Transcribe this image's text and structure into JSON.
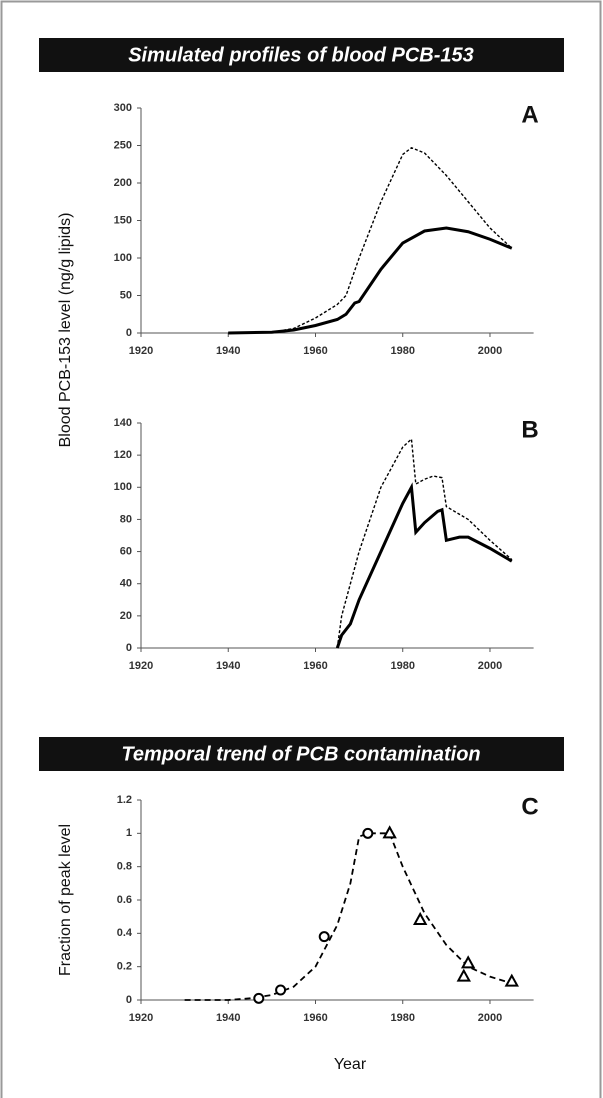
{
  "banners": [
    "Simulated profiles of blood PCB-153",
    "Temporal trend of PCB contamination"
  ],
  "shared_ylabel": "Blood PCB-153 level (ng/g lipids)",
  "chart_data": [
    {
      "type": "line",
      "panel": "A",
      "xlim": [
        1920,
        2010
      ],
      "xticks": [
        1920,
        1940,
        1960,
        1980,
        2000
      ],
      "ylim": [
        0,
        300
      ],
      "yticks": [
        0,
        50,
        100,
        150,
        200,
        250,
        300
      ],
      "series": [
        {
          "color": "#000000",
          "dash": false,
          "x": [
            1940,
            1950,
            1955,
            1960,
            1965,
            1967,
            1969,
            1970,
            1975,
            1980,
            1985,
            1990,
            1995,
            2000,
            2005
          ],
          "values": [
            0,
            1,
            4,
            10,
            18,
            25,
            40,
            42,
            85,
            120,
            136,
            140,
            135,
            125,
            113
          ]
        },
        {
          "color": "#000000",
          "dash": true,
          "x": [
            1940,
            1950,
            1955,
            1960,
            1965,
            1967,
            1970,
            1975,
            1980,
            1982,
            1985,
            1990,
            1995,
            2000,
            2005
          ],
          "values": [
            0,
            1,
            6,
            20,
            38,
            50,
            100,
            175,
            238,
            247,
            240,
            210,
            175,
            140,
            113
          ]
        }
      ]
    },
    {
      "type": "line",
      "panel": "B",
      "xlim": [
        1920,
        2010
      ],
      "xticks": [
        1920,
        1940,
        1960,
        1980,
        2000
      ],
      "ylim": [
        0,
        140
      ],
      "yticks": [
        0,
        20,
        40,
        60,
        80,
        100,
        120,
        140
      ],
      "series": [
        {
          "color": "#000000",
          "dash": false,
          "x": [
            1965,
            1966,
            1968,
            1970,
            1975,
            1980,
            1982,
            1983,
            1985,
            1988,
            1989,
            1990,
            1993,
            1995,
            2000,
            2005
          ],
          "values": [
            0,
            8,
            15,
            30,
            60,
            90,
            100,
            72,
            78,
            85,
            86,
            67,
            69,
            69,
            62,
            54
          ]
        },
        {
          "color": "#000000",
          "dash": true,
          "x": [
            1965,
            1966,
            1970,
            1975,
            1980,
            1982,
            1983,
            1985,
            1987,
            1989,
            1990,
            1995,
            2000,
            2005
          ],
          "values": [
            0,
            20,
            60,
            100,
            125,
            130,
            102,
            105,
            107,
            106,
            88,
            80,
            67,
            55
          ]
        }
      ]
    },
    {
      "type": "line",
      "panel": "C",
      "xlabel": "Year",
      "ylabel": "Fraction of peak level",
      "xlim": [
        1920,
        2010
      ],
      "xticks": [
        1920,
        1940,
        1960,
        1980,
        2000
      ],
      "ylim": [
        0,
        1.2
      ],
      "yticks": [
        0,
        0.2,
        0.4,
        0.6,
        0.8,
        1,
        1.2
      ],
      "series": [
        {
          "color": "#000000",
          "dash": true,
          "x": [
            1930,
            1940,
            1945,
            1950,
            1955,
            1960,
            1965,
            1968,
            1970,
            1972,
            1977,
            1980,
            1985,
            1990,
            1995,
            2000,
            2005
          ],
          "values": [
            0,
            0,
            0.01,
            0.03,
            0.08,
            0.2,
            0.45,
            0.7,
            0.98,
            1,
            1,
            0.8,
            0.52,
            0.33,
            0.2,
            0.14,
            0.1
          ]
        },
        {
          "color": "#000000",
          "marker": "circle",
          "x": [
            1947,
            1952,
            1962,
            1972
          ],
          "values": [
            0.01,
            0.06,
            0.38,
            1
          ]
        },
        {
          "color": "#000000",
          "marker": "triangle",
          "x": [
            1977,
            1984,
            1994,
            1995,
            2005
          ],
          "values": [
            1,
            0.48,
            0.14,
            0.22,
            0.11
          ]
        }
      ]
    }
  ]
}
